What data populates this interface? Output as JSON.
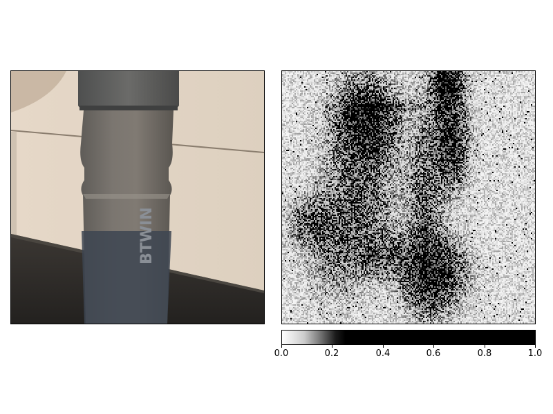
{
  "chart_data": [
    {
      "type": "image",
      "panel": "left",
      "content": "photograph",
      "axes_visible": false,
      "brand_logo_text": "BTWIN"
    },
    {
      "type": "heatmap",
      "panel": "right",
      "colormap": "grayscale, white (low) to black (high)",
      "axes_visible": false,
      "colorbar": {
        "orientation": "horizontal",
        "location": "bottom",
        "range": [
          0.0,
          1.0
        ],
        "tick_labels": [
          "0.0",
          "0.2",
          "0.4",
          "0.6",
          "0.8",
          "1.0"
        ],
        "saturation_value": 0.25
      }
    }
  ]
}
